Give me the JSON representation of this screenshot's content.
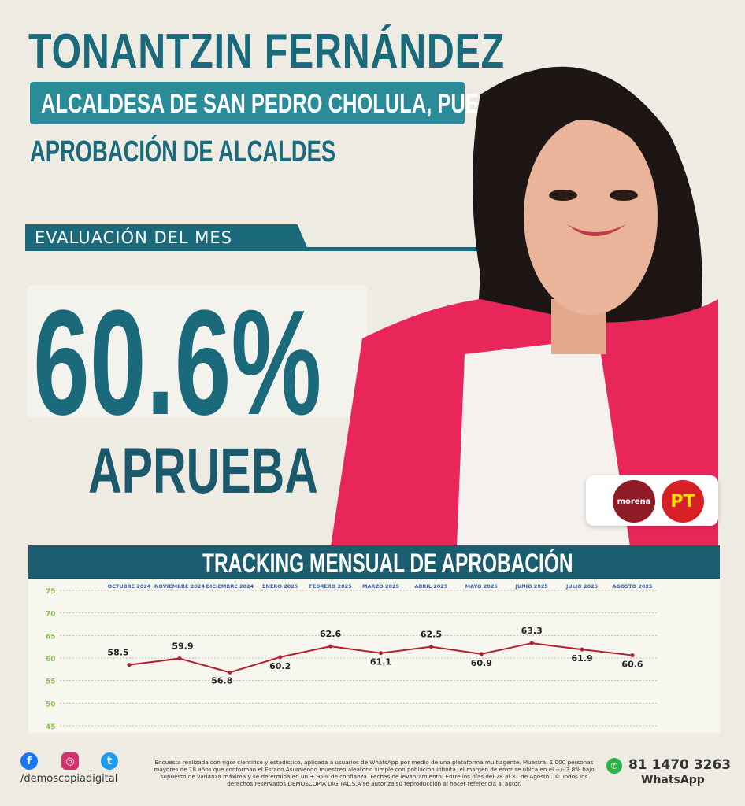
{
  "header": {
    "title": "TONANTZIN FERNÁNDEZ",
    "subtitle": "ALCALDESA DE SAN PEDRO CHOLULA, PUE.",
    "section": "APROBACIÓN DE ALCALDES"
  },
  "evaluation": {
    "label": "EVALUACIÓN DEL MES",
    "value": "60.6%",
    "verdict": "APRUEBA"
  },
  "parties": {
    "morena": "morena",
    "pt": "PT"
  },
  "colors": {
    "teal": "#1a6a7c",
    "line": "#b0202a"
  },
  "chart_data": {
    "type": "line",
    "title": "TRACKING MENSUAL DE APROBACIÓN",
    "categories": [
      "OCTUBRE 2024",
      "NOVIEMBRE 2024",
      "DICIEMBRE 2024",
      "ENERO 2025",
      "FEBRERO 2025",
      "MARZO 2025",
      "ABRIL 2025",
      "MAYO 2025",
      "JUNIO 2025",
      "JULIO 2025",
      "AGOSTO 2025"
    ],
    "values": [
      58.5,
      59.9,
      56.8,
      60.2,
      62.6,
      61.1,
      62.5,
      60.9,
      63.3,
      61.9,
      60.6
    ],
    "labels": [
      "58.5",
      "59.9",
      "56.8",
      "60.2",
      "62.6",
      "61.1",
      "62.5",
      "60.9",
      "63.3",
      "61.9",
      "60.6"
    ],
    "yticks": [
      "45",
      "50",
      "55",
      "60",
      "65",
      "70",
      "75"
    ],
    "ylim": [
      45,
      75
    ],
    "grid": true
  },
  "footer": {
    "disclaimer": "Encuesta realizada con rigor científico y estadístico, aplicada a usuarios de WhatsApp por medio de una plataforma multiagente. Muestra: 1,000 personas mayores de 18 años que conforman el Estado.Asumiendo muestreo aleatorio simple con población infinita, el margen de error se ubica en el +/- 3.8% bajo supuesto de varianza máxima y se determina en un ± 95% de confianza. Fechas de levantamiento: Entre los días del 28 al 31 de Agosto . © Todos los derechos reservados DEMOSCOPIA DIGITAL,S.A se autoriza su reproducción al hacer referencia al autor.",
    "handle": "/demoscopiadigital",
    "phone": "81 1470 3263",
    "whatsapp": "WhatsApp",
    "icons": [
      "facebook-icon",
      "instagram-icon",
      "twitter-icon",
      "whatsapp-icon"
    ]
  }
}
